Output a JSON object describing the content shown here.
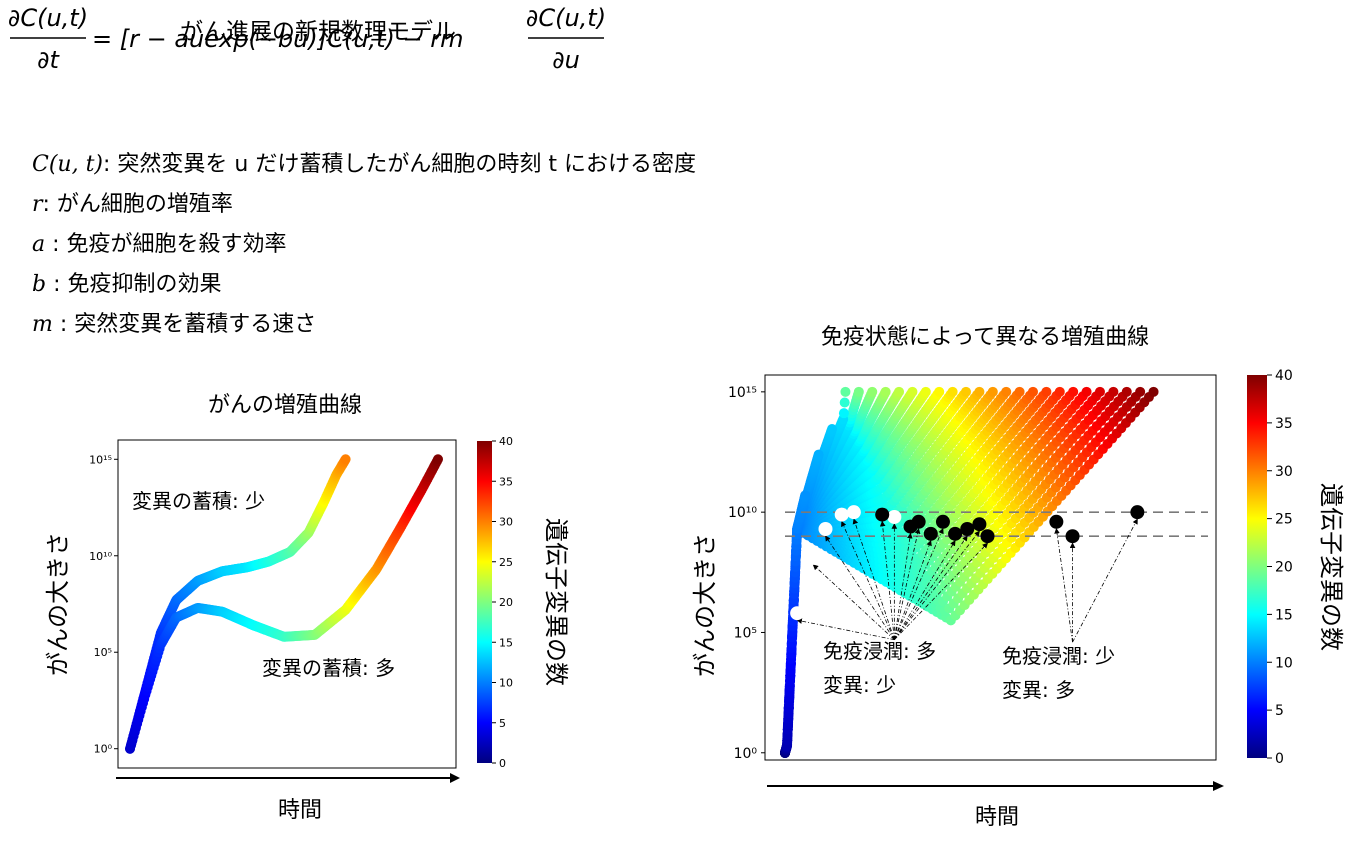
{
  "doc_title": "がん進展の新規数理モデル",
  "equation": {
    "lhs_num": "∂C(u,t)",
    "lhs_den": "∂t",
    "rhs_mid": "= [r − auexp(−bu)]C(u,t) − rm",
    "rhs_num": "∂C(u,t)",
    "rhs_den": "∂u"
  },
  "definitions": [
    {
      "symbol": "C(u, t)",
      "text": ": 突然変異を u だけ蓄積したがん細胞の時刻 t における密度"
    },
    {
      "symbol": "r",
      "text": ": がん細胞の増殖率"
    },
    {
      "symbol": "a",
      "text": " : 免疫が細胞を殺す効率"
    },
    {
      "symbol": "b",
      "text": " : 免疫抑制の効果"
    },
    {
      "symbol": "m",
      "text": " : 突然変異を蓄積する速さ"
    }
  ],
  "colormap": [
    "#00007f",
    "#0000ff",
    "#007fff",
    "#00ffff",
    "#7fff7f",
    "#ffff00",
    "#ff7f00",
    "#ff0000",
    "#7f0000"
  ],
  "chart_data": [
    {
      "type": "scatter",
      "title": "がんの増殖曲線",
      "xlabel": "時間",
      "ylabel": "がんの大きさ",
      "y_scale": "log",
      "y_ticks": [
        "10⁰",
        "10⁵",
        "10¹⁰",
        "10¹⁵"
      ],
      "ylim_log10": [
        -1,
        16
      ],
      "colorbar": {
        "label": "遺伝子変異の数",
        "min": 0,
        "max": 40,
        "ticks": [
          "0",
          "5",
          "10",
          "15",
          "20",
          "25",
          "30",
          "35",
          "40"
        ]
      },
      "annotations": [
        "変異の蓄積: 少",
        "変異の蓄積: 多"
      ],
      "series": [
        {
          "name": "変異の蓄積: 少",
          "x": [
            0,
            0.05,
            0.1,
            0.15,
            0.22,
            0.3,
            0.38,
            0.45,
            0.52,
            0.58,
            0.63,
            0.67,
            0.7
          ],
          "log10_y": [
            0,
            3,
            6,
            7.7,
            8.7,
            9.2,
            9.4,
            9.7,
            10.2,
            11.2,
            12.8,
            14.2,
            15
          ],
          "mutations": [
            3,
            5,
            7,
            9,
            11,
            13,
            14,
            16,
            18,
            21,
            25,
            28,
            30
          ]
        },
        {
          "name": "変異の蓄積: 多",
          "x": [
            0,
            0.05,
            0.1,
            0.15,
            0.22,
            0.3,
            0.4,
            0.5,
            0.6,
            0.7,
            0.8,
            0.88,
            0.95,
            1.0
          ],
          "log10_y": [
            0,
            2.8,
            5.4,
            6.8,
            7.3,
            7.1,
            6.4,
            5.8,
            5.9,
            7.2,
            9.3,
            11.5,
            13.5,
            15
          ],
          "mutations": [
            3,
            5,
            7,
            9,
            11,
            13,
            15,
            17,
            20,
            24,
            29,
            33,
            37,
            40
          ]
        }
      ]
    },
    {
      "type": "scatter",
      "title": "免疫状態によって異なる増殖曲線",
      "xlabel": "時間",
      "ylabel": "がんの大きさ",
      "y_scale": "log",
      "y_ticks": [
        "10⁰",
        "10⁵",
        "10¹⁰",
        "10¹⁵"
      ],
      "ylim_log10": [
        -0.3,
        15.7
      ],
      "threshold_log10": [
        10,
        9
      ],
      "colorbar": {
        "label": "遺伝子変異の数",
        "min": 0,
        "max": 40,
        "ticks": [
          "0",
          "5",
          "10",
          "15",
          "20",
          "25",
          "30",
          "35",
          "40"
        ]
      },
      "annotations": [
        "免疫浸潤: 多",
        "変異: 少",
        "免疫浸潤: 少",
        "変異: 多"
      ],
      "curve_count": 27,
      "first_peak_x": 0.05,
      "last_peak_x": 0.91,
      "white_points": [
        [
          0.03,
          5.8
        ],
        [
          0.07,
          8.1
        ],
        [
          0.1,
          9.3
        ],
        [
          0.14,
          9.9
        ],
        [
          0.17,
          10.0
        ],
        [
          0.27,
          9.8
        ]
      ],
      "black_points": [
        [
          0.24,
          9.9
        ],
        [
          0.31,
          9.4
        ],
        [
          0.33,
          9.6
        ],
        [
          0.36,
          9.1
        ],
        [
          0.39,
          9.6
        ],
        [
          0.42,
          9.1
        ],
        [
          0.45,
          9.3
        ],
        [
          0.48,
          9.5
        ],
        [
          0.5,
          9.0
        ],
        [
          0.67,
          9.6
        ],
        [
          0.71,
          9.0
        ],
        [
          0.87,
          10.0
        ]
      ]
    }
  ]
}
